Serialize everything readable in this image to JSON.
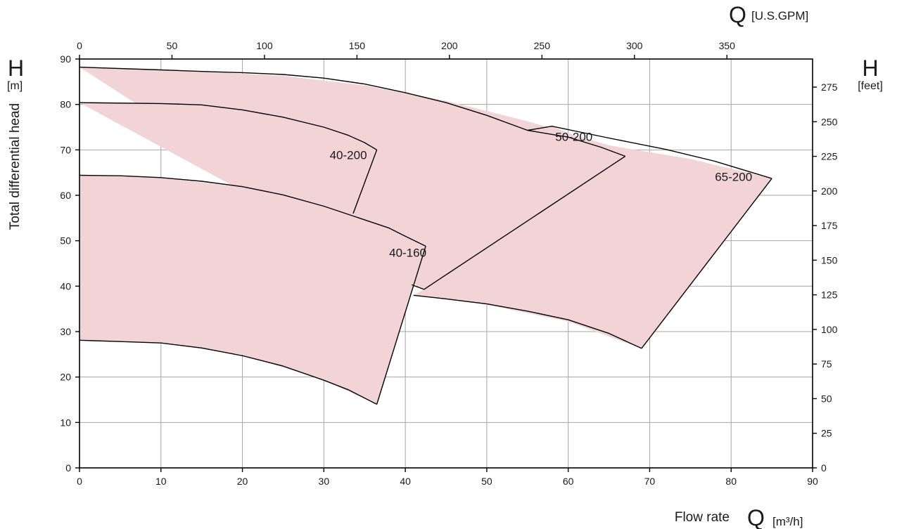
{
  "chart_data": {
    "type": "area",
    "title": "",
    "xlabel": "Flow rate",
    "xunit_symbol": "Q",
    "xunit": "[m³/h]",
    "x2unit_symbol": "Q",
    "x2unit": "[U.S.GPM]",
    "ylabel": "Total differential head",
    "yunit_symbol": "H",
    "yunit": "[m]",
    "y2unit_symbol": "H",
    "y2unit": "[feet]",
    "xlim": [
      0,
      90
    ],
    "ylim": [
      0,
      90
    ],
    "x2lim_gpm": [
      0,
      396.3
    ],
    "y2lim_feet": [
      0,
      295.3
    ],
    "grid": true,
    "x_ticks": [
      0,
      10,
      20,
      30,
      40,
      50,
      60,
      70,
      80,
      90
    ],
    "y_ticks": [
      0,
      10,
      20,
      30,
      40,
      50,
      60,
      70,
      80,
      90
    ],
    "x2_ticks": [
      0,
      50,
      100,
      150,
      200,
      250,
      300,
      350
    ],
    "y2_ticks": [
      0,
      25,
      50,
      75,
      100,
      125,
      150,
      175,
      200,
      225,
      250,
      275
    ],
    "fill_color": "#f2d4d6",
    "line_color": "#000000",
    "grid_color": "#a6a6a6",
    "regions": [
      {
        "name": "65-200",
        "label_at": [
          80.3,
          63.2
        ],
        "points": [
          [
            0,
            88.2
          ],
          [
            15,
            87.2
          ],
          [
            25,
            86.3
          ],
          [
            35,
            84.2
          ],
          [
            45,
            80.8
          ],
          [
            55,
            76.3
          ],
          [
            65,
            71.0
          ],
          [
            75,
            68.0
          ],
          [
            85,
            63.7
          ],
          [
            69,
            26.3
          ],
          [
            60,
            32.2
          ],
          [
            50,
            35.9
          ],
          [
            41,
            38.0
          ],
          [
            42.3,
            39.3
          ]
        ]
      },
      {
        "name": "50-200",
        "label_at": [
          60.7,
          72.0
        ],
        "points": [
          [
            0,
            80.4
          ],
          [
            10,
            80.2
          ],
          [
            20,
            78.8
          ],
          [
            30,
            76.4
          ],
          [
            40,
            72.6
          ],
          [
            50,
            68.4
          ],
          [
            58,
            75.2
          ],
          [
            67,
            68.6
          ],
          [
            42.3,
            39.3
          ]
        ]
      },
      {
        "name": "40-200",
        "label_at": [
          33.0,
          68.0
        ],
        "points": [
          [
            0,
            80.4
          ],
          [
            10,
            80.2
          ],
          [
            20,
            78.8
          ],
          [
            27,
            76.5
          ],
          [
            33,
            73.5
          ],
          [
            36.5,
            70.0
          ],
          [
            33.6,
            56.0
          ]
        ]
      },
      {
        "name": "40-160",
        "label_at": [
          40.3,
          46.5
        ],
        "points": [
          [
            0,
            64.4
          ],
          [
            10,
            63.9
          ],
          [
            20,
            61.8
          ],
          [
            30,
            57.6
          ],
          [
            38,
            53.1
          ],
          [
            42.5,
            48.8
          ],
          [
            36.5,
            14.0
          ],
          [
            30,
            19.3
          ],
          [
            20,
            24.9
          ],
          [
            10,
            27.5
          ],
          [
            0,
            28.1
          ]
        ]
      }
    ],
    "curves": [
      {
        "name": "65-200",
        "points": [
          [
            0,
            88.2
          ],
          [
            10,
            87.6
          ],
          [
            16,
            87.2
          ],
          [
            20,
            87.0
          ],
          [
            25,
            86.6
          ],
          [
            30,
            85.8
          ],
          [
            35,
            84.5
          ],
          [
            40,
            82.6
          ],
          [
            45,
            80.4
          ],
          [
            50,
            77.6
          ],
          [
            55,
            74.3
          ],
          [
            58,
            75.2
          ],
          [
            65,
            72.6
          ],
          [
            72,
            70.1
          ],
          [
            78,
            67.5
          ],
          [
            85,
            63.7
          ]
        ]
      },
      {
        "name": "65-200-min",
        "points": [
          [
            41,
            38.0
          ],
          [
            45,
            37.2
          ],
          [
            50,
            36.1
          ],
          [
            55,
            34.5
          ],
          [
            60,
            32.6
          ],
          [
            65,
            29.6
          ],
          [
            69,
            26.3
          ]
        ]
      },
      {
        "name": "50-200",
        "points": [
          [
            55,
            74.3
          ],
          [
            60,
            72.8
          ],
          [
            64,
            70.6
          ],
          [
            67,
            68.6
          ]
        ]
      },
      {
        "name": "40-200",
        "points": [
          [
            0,
            80.4
          ],
          [
            10,
            80.2
          ],
          [
            15,
            79.9
          ],
          [
            20,
            78.8
          ],
          [
            25,
            77.2
          ],
          [
            30,
            75.0
          ],
          [
            33,
            73.2
          ],
          [
            35,
            71.6
          ],
          [
            36.5,
            70.0
          ]
        ]
      },
      {
        "name": "40-160",
        "points": [
          [
            0,
            64.4
          ],
          [
            5,
            64.3
          ],
          [
            10,
            63.9
          ],
          [
            15,
            63.1
          ],
          [
            20,
            61.9
          ],
          [
            25,
            60.1
          ],
          [
            30,
            57.6
          ],
          [
            35,
            54.6
          ],
          [
            38,
            52.8
          ],
          [
            40,
            51.0
          ],
          [
            42.5,
            48.8
          ]
        ]
      },
      {
        "name": "40-160-min",
        "points": [
          [
            0,
            28.1
          ],
          [
            5,
            27.8
          ],
          [
            10,
            27.5
          ],
          [
            15,
            26.4
          ],
          [
            20,
            24.7
          ],
          [
            25,
            22.4
          ],
          [
            30,
            19.3
          ],
          [
            33,
            17.2
          ],
          [
            36.5,
            14.0
          ]
        ]
      }
    ],
    "edges": [
      {
        "name": "40-200-runout",
        "points": [
          [
            36.5,
            70.0
          ],
          [
            33.6,
            56.0
          ]
        ]
      },
      {
        "name": "40-160-runout",
        "points": [
          [
            42.5,
            48.8
          ],
          [
            36.5,
            14.0
          ]
        ]
      },
      {
        "name": "50-200-runout",
        "points": [
          [
            67,
            68.6
          ],
          [
            42.3,
            39.3
          ],
          [
            40.8,
            40.3
          ]
        ]
      },
      {
        "name": "65-200-runout",
        "points": [
          [
            85,
            63.7
          ],
          [
            69,
            26.3
          ]
        ]
      }
    ]
  }
}
